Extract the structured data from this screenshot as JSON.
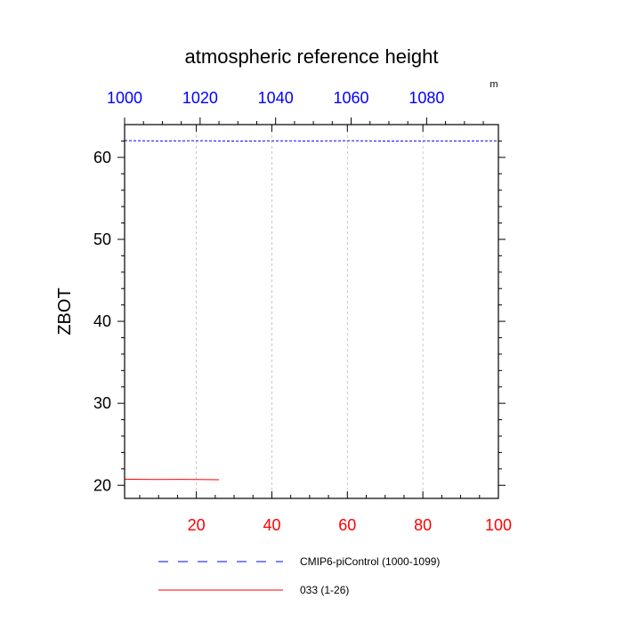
{
  "chart_data": {
    "type": "line",
    "title": "atmospheric reference height",
    "ylabel": "ZBOT",
    "unit_label": "m",
    "ylim": [
      18.4,
      64
    ],
    "yticks": [
      20,
      30,
      40,
      50,
      60
    ],
    "bottom_axis": {
      "range": [
        1,
        100
      ],
      "ticks": [
        20,
        40,
        60,
        80,
        100
      ],
      "color": "#ff0000"
    },
    "top_axis": {
      "range": [
        1000,
        1099
      ],
      "ticks": [
        1000,
        1020,
        1040,
        1060,
        1080
      ],
      "color": "#0000ff"
    },
    "grid": "vertical dashed",
    "legend_position": "bottom",
    "series": [
      {
        "name": "CMIP6-piControl (1000-1099)",
        "axis": "top",
        "color": "#0000ff",
        "dash": "dashed",
        "x": [
          1000,
          1010,
          1020,
          1030,
          1040,
          1050,
          1060,
          1070,
          1080,
          1090,
          1099
        ],
        "values": [
          62.05,
          62.0,
          62.03,
          61.98,
          62.02,
          62.0,
          62.04,
          61.99,
          62.01,
          62.0,
          62.02
        ]
      },
      {
        "name": "033 (1-26)",
        "axis": "bottom",
        "color": "#ff0000",
        "dash": "solid",
        "x": [
          1,
          5,
          10,
          15,
          20,
          26
        ],
        "values": [
          20.75,
          20.72,
          20.7,
          20.72,
          20.7,
          20.68
        ]
      }
    ]
  }
}
